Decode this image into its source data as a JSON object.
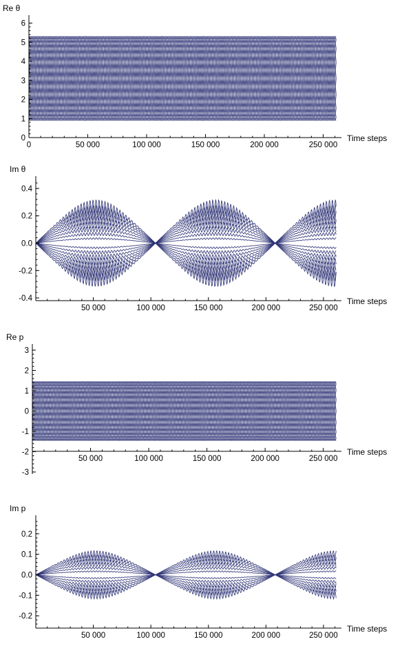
{
  "chart_data": [
    {
      "type": "line",
      "ylabel": "Re θ",
      "xlabel": "Time steps",
      "xlim": [
        0,
        262000
      ],
      "ylim": [
        0,
        6.2
      ],
      "xticks": [
        0,
        50000,
        100000,
        150000,
        200000,
        250000
      ],
      "xtick_labels": [
        "0",
        "50 000",
        "100 000",
        "150 000",
        "200 000",
        "250 000"
      ],
      "yticks": [
        0,
        1,
        2,
        3,
        4,
        5,
        6
      ],
      "ytick_labels": [
        "0",
        "1",
        "2",
        "3",
        "4",
        "5",
        "6"
      ],
      "pattern": {
        "kind": "band",
        "center": 3.1,
        "amplitude": 2.2,
        "curves": 16,
        "x_end": 261000
      },
      "color": "#2f3576",
      "grid": false,
      "legend": "none"
    },
    {
      "type": "line",
      "ylabel": "Im θ",
      "xlabel": "Time steps",
      "xlim": [
        0,
        262000
      ],
      "ylim": [
        -0.42,
        0.46
      ],
      "xticks": [
        50000,
        100000,
        150000,
        200000,
        250000
      ],
      "xtick_labels": [
        "50 000",
        "100 000",
        "150 000",
        "200 000",
        "250 000"
      ],
      "yticks": [
        -0.4,
        -0.2,
        0.0,
        0.2,
        0.4
      ],
      "ytick_labels": [
        "-0.4",
        "-0.2",
        "0.0",
        "0.2",
        "0.4"
      ],
      "pattern": {
        "kind": "diamond",
        "amplitude": 0.27,
        "period": 104000,
        "curves": 16,
        "x_end": 261000
      },
      "color": "#2f3576",
      "grid": false,
      "legend": "none"
    },
    {
      "type": "line",
      "ylabel": "Re p",
      "xlabel": "Time steps",
      "xlim": [
        0,
        262000
      ],
      "ylim": [
        -3.1,
        3.1
      ],
      "xticks": [
        50000,
        100000,
        150000,
        200000,
        250000
      ],
      "xtick_labels": [
        "50 000",
        "100 000",
        "150 000",
        "200 000",
        "250 000"
      ],
      "yticks": [
        -3,
        -2,
        -1,
        0,
        1,
        2,
        3
      ],
      "ytick_labels": [
        "-3",
        "-2",
        "-1",
        "0",
        "1",
        "2",
        "3"
      ],
      "pattern": {
        "kind": "band",
        "center": 0,
        "amplitude": 1.45,
        "curves": 16,
        "x_end": 261000
      },
      "color": "#2f3576",
      "grid": false,
      "legend": "none"
    },
    {
      "type": "line",
      "ylabel": "Im p",
      "xlabel": "Time steps",
      "xlim": [
        0,
        262000
      ],
      "ylim": [
        -0.26,
        0.27
      ],
      "xticks": [
        50000,
        100000,
        150000,
        200000,
        250000
      ],
      "xtick_labels": [
        "50 000",
        "100 000",
        "150 000",
        "200 000",
        "250 000"
      ],
      "yticks": [
        -0.2,
        -0.1,
        0.0,
        0.1,
        0.2
      ],
      "ytick_labels": [
        "-0.2",
        "-0.1",
        "0.0",
        "0.1",
        "0.2"
      ],
      "pattern": {
        "kind": "diamond",
        "amplitude": 0.1,
        "period": 104000,
        "curves": 12,
        "x_end": 261000
      },
      "color": "#2f3576",
      "grid": false,
      "legend": "none"
    }
  ]
}
